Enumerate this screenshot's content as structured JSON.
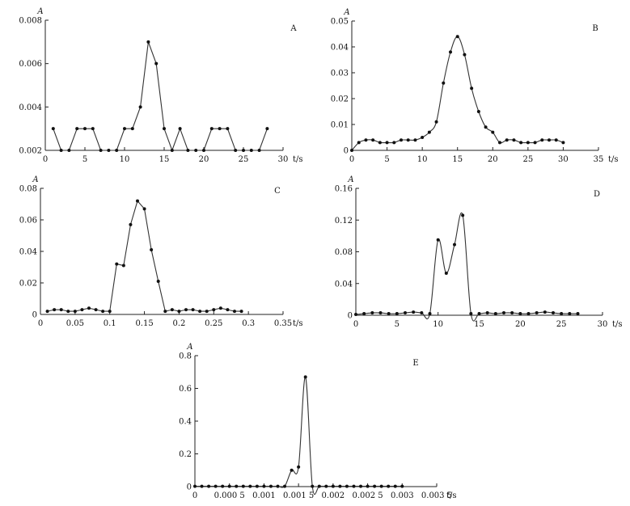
{
  "chart_data": [
    {
      "type": "line",
      "panel": "A",
      "ylabel": "A",
      "xlabel": "t/s",
      "xlim": [
        0,
        30
      ],
      "ylim": [
        0.002,
        0.008
      ],
      "xticks": [
        0,
        5,
        10,
        15,
        20,
        25,
        30
      ],
      "xtick_labels": [
        "0",
        "5",
        "10",
        "15",
        "20",
        "25",
        "30"
      ],
      "yticks": [
        0.002,
        0.004,
        0.006,
        0.008
      ],
      "ytick_labels": [
        "0.002",
        "0.004",
        "0.006",
        "0.008"
      ],
      "x": [
        1,
        2,
        3,
        4,
        5,
        6,
        7,
        8,
        9,
        10,
        11,
        12,
        13,
        14,
        15,
        16,
        17,
        18,
        19,
        20,
        21,
        22,
        23,
        24,
        25,
        26,
        27,
        28
      ],
      "y": [
        0.003,
        0.002,
        0.002,
        0.003,
        0.003,
        0.003,
        0.002,
        0.002,
        0.002,
        0.003,
        0.003,
        0.004,
        0.007,
        0.006,
        0.003,
        0.002,
        0.003,
        0.002,
        0.002,
        0.002,
        0.003,
        0.003,
        0.003,
        0.002,
        0.002,
        0.002,
        0.002,
        0.003
      ],
      "smooth": false
    },
    {
      "type": "line",
      "panel": "B",
      "ylabel": "A",
      "xlabel": "t/s",
      "xlim": [
        0,
        35
      ],
      "ylim": [
        0,
        0.05
      ],
      "xticks": [
        0,
        5,
        10,
        15,
        20,
        25,
        30,
        35
      ],
      "xtick_labels": [
        "0",
        "5",
        "10",
        "15",
        "20",
        "25",
        "30",
        "35"
      ],
      "yticks": [
        0,
        0.01,
        0.02,
        0.03,
        0.04,
        0.05
      ],
      "ytick_labels": [
        "0",
        "0.01",
        "0.02",
        "0.03",
        "0.04",
        "0.05"
      ],
      "x": [
        0,
        1,
        2,
        3,
        4,
        5,
        6,
        7,
        8,
        9,
        10,
        11,
        12,
        13,
        14,
        15,
        16,
        17,
        18,
        19,
        20,
        21,
        22,
        23,
        24,
        25,
        26,
        27,
        28,
        29,
        30
      ],
      "y": [
        0,
        0.003,
        0.004,
        0.004,
        0.003,
        0.003,
        0.003,
        0.004,
        0.004,
        0.004,
        0.005,
        0.007,
        0.011,
        0.026,
        0.038,
        0.044,
        0.037,
        0.024,
        0.015,
        0.009,
        0.007,
        0.003,
        0.004,
        0.004,
        0.003,
        0.003,
        0.003,
        0.004,
        0.004,
        0.004,
        0.003
      ],
      "smooth": true
    },
    {
      "type": "line",
      "panel": "C",
      "ylabel": "A",
      "xlabel": "t/s",
      "xlim": [
        0,
        0.35
      ],
      "ylim": [
        0,
        0.08
      ],
      "xticks": [
        0,
        0.05,
        0.1,
        0.15,
        0.2,
        0.25,
        0.3,
        0.35
      ],
      "xtick_labels": [
        "0",
        "0.05",
        "0.1",
        "0.15",
        "0.2",
        "0.25",
        "0.3",
        "0.35"
      ],
      "yticks": [
        0,
        0.02,
        0.04,
        0.06,
        0.08
      ],
      "ytick_labels": [
        "0",
        "0.02",
        "0.04",
        "0.06",
        "0.08"
      ],
      "x": [
        0.01,
        0.02,
        0.03,
        0.04,
        0.05,
        0.06,
        0.07,
        0.08,
        0.09,
        0.1,
        0.11,
        0.12,
        0.13,
        0.14,
        0.15,
        0.16,
        0.17,
        0.18,
        0.19,
        0.2,
        0.21,
        0.22,
        0.23,
        0.24,
        0.25,
        0.26,
        0.27,
        0.28,
        0.29
      ],
      "y": [
        0.002,
        0.003,
        0.003,
        0.002,
        0.002,
        0.003,
        0.004,
        0.003,
        0.002,
        0.002,
        0.032,
        0.031,
        0.057,
        0.072,
        0.067,
        0.041,
        0.021,
        0.002,
        0.003,
        0.002,
        0.003,
        0.003,
        0.002,
        0.002,
        0.003,
        0.004,
        0.003,
        0.002,
        0.002
      ],
      "smooth": false
    },
    {
      "type": "line",
      "panel": "D",
      "ylabel": "A",
      "xlabel": "t/s",
      "xlim": [
        0,
        30
      ],
      "ylim": [
        0,
        0.16
      ],
      "xticks": [
        0,
        5,
        10,
        15,
        20,
        25,
        30
      ],
      "xtick_labels": [
        "0",
        "5",
        "10",
        "15",
        "20",
        "25",
        "30"
      ],
      "yticks": [
        0,
        0.04,
        0.08,
        0.12,
        0.16
      ],
      "ytick_labels": [
        "0",
        "0.04",
        "0.08",
        "0.12",
        "0.16"
      ],
      "x": [
        0,
        1,
        2,
        3,
        4,
        5,
        6,
        7,
        8,
        9,
        10,
        11,
        12,
        13,
        14,
        15,
        16,
        17,
        18,
        19,
        20,
        21,
        22,
        23,
        24,
        25,
        26,
        27
      ],
      "y": [
        0.001,
        0.002,
        0.003,
        0.003,
        0.002,
        0.002,
        0.003,
        0.004,
        0.003,
        0.002,
        0.095,
        0.053,
        0.089,
        0.126,
        0.002,
        0.002,
        0.003,
        0.002,
        0.003,
        0.003,
        0.002,
        0.002,
        0.003,
        0.004,
        0.003,
        0.002,
        0.002,
        0.002
      ],
      "smooth": true
    },
    {
      "type": "line",
      "panel": "E",
      "ylabel": "A",
      "xlabel": "t/s",
      "xlim": [
        0,
        0.0035
      ],
      "ylim": [
        0,
        0.8
      ],
      "xticks": [
        0,
        0.0005,
        0.001,
        0.0015,
        0.002,
        0.0025,
        0.003,
        0.0035
      ],
      "xtick_labels": [
        "0",
        "0.000 5",
        "0.001",
        "0.001 5",
        "0.002",
        "0.002 5",
        "0.003",
        "0.003 5"
      ],
      "yticks": [
        0,
        0.2,
        0.4,
        0.6,
        0.8
      ],
      "ytick_labels": [
        "0",
        "0.2",
        "0.4",
        "0.6",
        "0.8"
      ],
      "x": [
        0,
        0.0001,
        0.0002,
        0.0003,
        0.0004,
        0.0005,
        0.0006,
        0.0007,
        0.0008,
        0.0009,
        0.001,
        0.0011,
        0.0012,
        0.0013,
        0.0014,
        0.0015,
        0.0016,
        0.0017,
        0.0018,
        0.0019,
        0.002,
        0.0021,
        0.0022,
        0.0023,
        0.0024,
        0.0025,
        0.0026,
        0.0027,
        0.0028,
        0.0029,
        0.003
      ],
      "y": [
        0.002,
        0.002,
        0.002,
        0.002,
        0.002,
        0.002,
        0.002,
        0.002,
        0.002,
        0.002,
        0.002,
        0.002,
        0.002,
        0.002,
        0.1,
        0.12,
        0.67,
        0.002,
        0.002,
        0.002,
        0.002,
        0.002,
        0.002,
        0.002,
        0.002,
        0.002,
        0.002,
        0.002,
        0.002,
        0.002,
        0.002
      ],
      "smooth": true
    }
  ]
}
